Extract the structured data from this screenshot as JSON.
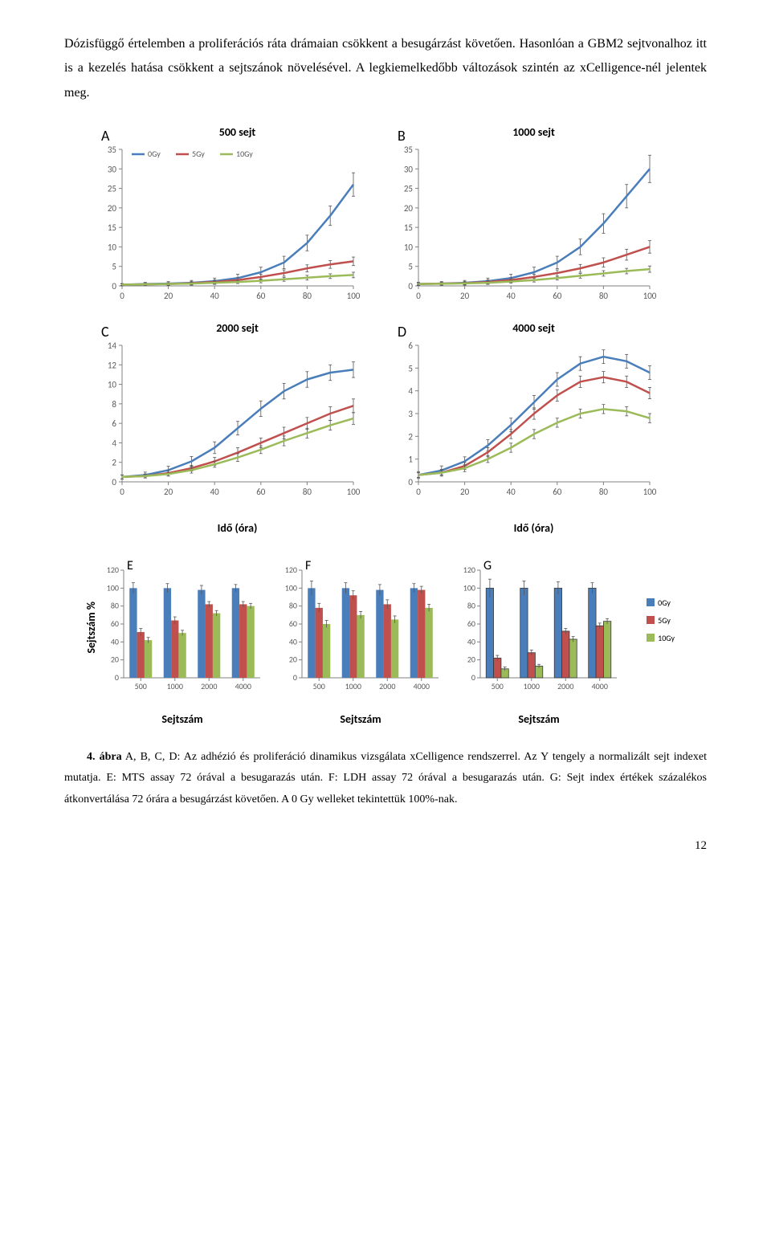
{
  "paragraph": "Dózisfüggő értelemben a proliferációs ráta drámaian csökkent a besugárzást követően. Hasonlóan a GBM2 sejtvonalhoz itt is a kezelés hatása csökkent a sejtszánok növelésével. A legkiemelkedőbb változások szintén az xCelligence-nél jelentek meg.",
  "caption_bold": "4. ábra",
  "caption": " A, B, C, D: Az adhézió és proliferáció dinamikus vizsgálata xCelligence rendszerrel. Az Y tengely a normalizált sejt indexet mutatja. E: MTS assay 72 órával a besugarazás után. F: LDH assay 72 órával a besugarazás után. G: Sejt index értékek százalékos átkonvertálása 72 órára a besugárzást követően. A 0 Gy welleket tekintettük 100%-nak.",
  "page_number": "12",
  "series_colors": {
    "0Gy": "#4a7ebb",
    "5Gy": "#c0504d",
    "10Gy": "#9bbb59"
  },
  "series_names": [
    "0Gy",
    "5Gy",
    "10Gy"
  ],
  "axis_color": "#808080",
  "tick_font_size": 11,
  "axis_font_size": 14,
  "line_charts": {
    "x_ticks": [
      0,
      20,
      40,
      60,
      80,
      100
    ],
    "A": {
      "label": "A",
      "title": "500 sejt",
      "y_ticks": [
        0,
        5,
        10,
        15,
        20,
        25,
        30,
        35
      ],
      "ylim": [
        0,
        35
      ],
      "series": {
        "0Gy": [
          [
            0,
            0.3
          ],
          [
            10,
            0.5
          ],
          [
            20,
            0.6
          ],
          [
            30,
            0.8
          ],
          [
            40,
            1.2
          ],
          [
            50,
            2
          ],
          [
            60,
            3.5
          ],
          [
            70,
            6
          ],
          [
            80,
            11
          ],
          [
            90,
            18
          ],
          [
            100,
            26
          ]
        ],
        "5Gy": [
          [
            0,
            0.3
          ],
          [
            10,
            0.4
          ],
          [
            20,
            0.5
          ],
          [
            30,
            0.7
          ],
          [
            40,
            1
          ],
          [
            50,
            1.5
          ],
          [
            60,
            2.3
          ],
          [
            70,
            3.3
          ],
          [
            80,
            4.5
          ],
          [
            90,
            5.5
          ],
          [
            100,
            6.3
          ]
        ],
        "10Gy": [
          [
            0,
            0.3
          ],
          [
            10,
            0.4
          ],
          [
            20,
            0.5
          ],
          [
            30,
            0.6
          ],
          [
            40,
            0.8
          ],
          [
            50,
            1.0
          ],
          [
            60,
            1.3
          ],
          [
            70,
            1.7
          ],
          [
            80,
            2.1
          ],
          [
            90,
            2.5
          ],
          [
            100,
            2.8
          ]
        ]
      },
      "errors": {
        "0Gy": [
          0.3,
          0.4,
          0.5,
          0.6,
          0.8,
          1.0,
          1.3,
          1.6,
          2.0,
          2.5,
          3.0
        ],
        "5Gy": [
          0.2,
          0.3,
          0.3,
          0.4,
          0.5,
          0.6,
          0.7,
          0.8,
          0.9,
          1.0,
          1.1
        ],
        "10Gy": [
          0.2,
          0.2,
          0.3,
          0.3,
          0.4,
          0.4,
          0.5,
          0.5,
          0.6,
          0.6,
          0.7
        ]
      },
      "show_legend": true
    },
    "B": {
      "label": "B",
      "title": "1000 sejt",
      "y_ticks": [
        0,
        5,
        10,
        15,
        20,
        25,
        30,
        35
      ],
      "ylim": [
        0,
        35
      ],
      "series": {
        "0Gy": [
          [
            0,
            0.5
          ],
          [
            10,
            0.6
          ],
          [
            20,
            0.8
          ],
          [
            30,
            1.2
          ],
          [
            40,
            2
          ],
          [
            50,
            3.5
          ],
          [
            60,
            6
          ],
          [
            70,
            10
          ],
          [
            80,
            16
          ],
          [
            90,
            23
          ],
          [
            100,
            30
          ]
        ],
        "5Gy": [
          [
            0,
            0.5
          ],
          [
            10,
            0.6
          ],
          [
            20,
            0.7
          ],
          [
            30,
            1
          ],
          [
            40,
            1.5
          ],
          [
            50,
            2.3
          ],
          [
            60,
            3.3
          ],
          [
            70,
            4.5
          ],
          [
            80,
            6
          ],
          [
            90,
            8
          ],
          [
            100,
            10
          ]
        ],
        "10Gy": [
          [
            0,
            0.5
          ],
          [
            10,
            0.55
          ],
          [
            20,
            0.65
          ],
          [
            30,
            0.8
          ],
          [
            40,
            1.1
          ],
          [
            50,
            1.5
          ],
          [
            60,
            2
          ],
          [
            70,
            2.6
          ],
          [
            80,
            3.2
          ],
          [
            90,
            3.8
          ],
          [
            100,
            4.3
          ]
        ]
      },
      "errors": {
        "0Gy": [
          0.4,
          0.5,
          0.6,
          0.8,
          1.0,
          1.3,
          1.6,
          2.0,
          2.5,
          3.0,
          3.5
        ],
        "5Gy": [
          0.3,
          0.3,
          0.4,
          0.5,
          0.6,
          0.7,
          0.8,
          1.0,
          1.2,
          1.4,
          1.6
        ],
        "10Gy": [
          0.2,
          0.3,
          0.3,
          0.4,
          0.4,
          0.5,
          0.5,
          0.6,
          0.7,
          0.7,
          0.8
        ]
      },
      "show_legend": false
    },
    "C": {
      "label": "C",
      "title": "2000 sejt",
      "y_ticks": [
        0,
        2,
        4,
        6,
        8,
        10,
        12,
        14
      ],
      "ylim": [
        0,
        14
      ],
      "series": {
        "0Gy": [
          [
            0,
            0.5
          ],
          [
            10,
            0.7
          ],
          [
            20,
            1.2
          ],
          [
            30,
            2.1
          ],
          [
            40,
            3.5
          ],
          [
            50,
            5.5
          ],
          [
            60,
            7.5
          ],
          [
            70,
            9.3
          ],
          [
            80,
            10.5
          ],
          [
            90,
            11.2
          ],
          [
            100,
            11.5
          ]
        ],
        "5Gy": [
          [
            0,
            0.5
          ],
          [
            10,
            0.6
          ],
          [
            20,
            0.9
          ],
          [
            30,
            1.4
          ],
          [
            40,
            2.1
          ],
          [
            50,
            3
          ],
          [
            60,
            4
          ],
          [
            70,
            5
          ],
          [
            80,
            6
          ],
          [
            90,
            7
          ],
          [
            100,
            7.8
          ]
        ],
        "10Gy": [
          [
            0,
            0.5
          ],
          [
            10,
            0.6
          ],
          [
            20,
            0.8
          ],
          [
            30,
            1.2
          ],
          [
            40,
            1.8
          ],
          [
            50,
            2.5
          ],
          [
            60,
            3.3
          ],
          [
            70,
            4.2
          ],
          [
            80,
            5
          ],
          [
            90,
            5.8
          ],
          [
            100,
            6.5
          ]
        ]
      },
      "errors": {
        "0Gy": [
          0.2,
          0.3,
          0.4,
          0.5,
          0.6,
          0.7,
          0.8,
          0.8,
          0.8,
          0.8,
          0.8
        ],
        "5Gy": [
          0.2,
          0.2,
          0.3,
          0.3,
          0.4,
          0.5,
          0.5,
          0.6,
          0.6,
          0.7,
          0.7
        ],
        "10Gy": [
          0.2,
          0.2,
          0.2,
          0.3,
          0.3,
          0.4,
          0.4,
          0.5,
          0.5,
          0.5,
          0.6
        ]
      },
      "show_legend": false
    },
    "D": {
      "label": "D",
      "title": "4000 sejt",
      "y_ticks": [
        0,
        1,
        2,
        3,
        4,
        5,
        6
      ],
      "ylim": [
        0,
        6
      ],
      "series": {
        "0Gy": [
          [
            0,
            0.3
          ],
          [
            10,
            0.5
          ],
          [
            20,
            0.9
          ],
          [
            30,
            1.6
          ],
          [
            40,
            2.5
          ],
          [
            50,
            3.5
          ],
          [
            60,
            4.5
          ],
          [
            70,
            5.2
          ],
          [
            80,
            5.5
          ],
          [
            90,
            5.3
          ],
          [
            100,
            4.8
          ]
        ],
        "5Gy": [
          [
            0,
            0.3
          ],
          [
            10,
            0.4
          ],
          [
            20,
            0.7
          ],
          [
            30,
            1.3
          ],
          [
            40,
            2.1
          ],
          [
            50,
            3
          ],
          [
            60,
            3.8
          ],
          [
            70,
            4.4
          ],
          [
            80,
            4.6
          ],
          [
            90,
            4.4
          ],
          [
            100,
            3.9
          ]
        ],
        "10Gy": [
          [
            0,
            0.3
          ],
          [
            10,
            0.4
          ],
          [
            20,
            0.6
          ],
          [
            30,
            1
          ],
          [
            40,
            1.5
          ],
          [
            50,
            2.1
          ],
          [
            60,
            2.6
          ],
          [
            70,
            3
          ],
          [
            80,
            3.2
          ],
          [
            90,
            3.1
          ],
          [
            100,
            2.8
          ]
        ]
      },
      "errors": {
        "0Gy": [
          0.15,
          0.2,
          0.2,
          0.25,
          0.3,
          0.3,
          0.3,
          0.3,
          0.3,
          0.3,
          0.3
        ],
        "5Gy": [
          0.1,
          0.15,
          0.15,
          0.2,
          0.2,
          0.25,
          0.25,
          0.25,
          0.25,
          0.25,
          0.25
        ],
        "10Gy": [
          0.1,
          0.1,
          0.15,
          0.15,
          0.2,
          0.2,
          0.2,
          0.2,
          0.2,
          0.2,
          0.2
        ]
      },
      "show_legend": false
    }
  },
  "x_axis_label": "Idő (óra)",
  "y_axis_label_bar": "Sejtszám %",
  "bar_x_label": "Sejtszám",
  "bar_charts": {
    "x_categories": [
      "500",
      "1000",
      "2000",
      "4000"
    ],
    "y_ticks": [
      0,
      20,
      40,
      60,
      80,
      100,
      120
    ],
    "ylim": [
      0,
      120
    ],
    "E": {
      "label": "E",
      "values": {
        "0Gy": [
          100,
          100,
          98,
          100
        ],
        "5Gy": [
          51,
          64,
          82,
          82
        ],
        "10Gy": [
          42,
          50,
          72,
          80
        ]
      },
      "errors": {
        "0Gy": [
          6,
          5,
          5,
          4
        ],
        "5Gy": [
          4,
          4,
          3,
          3
        ],
        "10Gy": [
          3,
          3,
          3,
          3
        ]
      },
      "outline": false
    },
    "F": {
      "label": "F",
      "values": {
        "0Gy": [
          100,
          100,
          98,
          100
        ],
        "5Gy": [
          78,
          92,
          82,
          98
        ],
        "10Gy": [
          60,
          70,
          65,
          78
        ]
      },
      "errors": {
        "0Gy": [
          8,
          6,
          6,
          5
        ],
        "5Gy": [
          5,
          5,
          5,
          4
        ],
        "10Gy": [
          4,
          4,
          4,
          4
        ]
      },
      "outline": false
    },
    "G": {
      "label": "G",
      "values": {
        "0Gy": [
          100,
          100,
          100,
          100
        ],
        "5Gy": [
          22,
          28,
          52,
          58
        ],
        "10Gy": [
          10,
          13,
          43,
          63
        ]
      },
      "errors": {
        "0Gy": [
          10,
          8,
          7,
          6
        ],
        "5Gy": [
          3,
          3,
          3,
          3
        ],
        "10Gy": [
          2,
          2,
          3,
          3
        ]
      },
      "outline": true
    }
  }
}
